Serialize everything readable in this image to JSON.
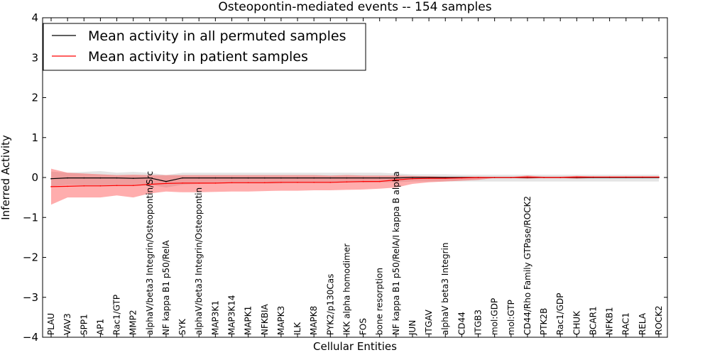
{
  "chart_data": {
    "type": "line",
    "title": "Osteopontin-mediated events -- 154 samples",
    "xlabel": "Cellular Entities",
    "ylabel": "Inferred Activity",
    "ylim": [
      -4,
      4
    ],
    "yticks": [
      4,
      3,
      2,
      1,
      0,
      -1,
      -2,
      -3,
      -4
    ],
    "ytick_labels": [
      "4",
      "3",
      "2",
      "1",
      "0",
      "−1",
      "−2",
      "−3",
      "−4"
    ],
    "legend_position": "top-left",
    "categories": [
      "PLAU",
      "VAV3",
      "SPP1",
      "AP1",
      "Rac1/GTP",
      "MMP2",
      "alphaV/beta3 Integrin/Osteopontin/Src",
      "NF kappa B1 p50/RelA",
      "SYK",
      "alphaV/beta3 Integrin/Osteopontin",
      "MAP3K1",
      "MAP3K14",
      "MAPK1",
      "NFKBIA",
      "MAPK3",
      "ILK",
      "MAPK8",
      "PYK2/p130Cas",
      "IKK alpha homodimer",
      "FOS",
      "bone resorption",
      "NF kappa B1 p50/RelA/I kappa B alpha",
      "JUN",
      "ITGAV",
      "alphaV beta3 Integrin",
      "CD44",
      "ITGB3",
      "mol:GDP",
      "mol:GTP",
      "CD44/Rho Family GTPase/ROCK2",
      "PTK2B",
      "Rac1/GDP",
      "CHUK",
      "BCAR1",
      "NFKB1",
      "RAC1",
      "RELA",
      "ROCK2"
    ],
    "series": [
      {
        "name": "Mean activity in all permuted samples",
        "color": "#000000",
        "values": [
          -0.03,
          -0.01,
          -0.01,
          -0.01,
          -0.01,
          -0.02,
          -0.01,
          -0.1,
          -0.01,
          -0.01,
          -0.01,
          -0.01,
          -0.01,
          -0.01,
          -0.01,
          -0.01,
          -0.01,
          -0.01,
          -0.01,
          -0.01,
          -0.01,
          -0.01,
          0.0,
          0.0,
          0.0,
          0.0,
          0.0,
          0.0,
          0.0,
          0.0,
          0.0,
          0.0,
          0.0,
          0.0,
          0.0,
          0.0,
          0.0,
          0.0
        ],
        "band_upper": [
          0.15,
          0.12,
          0.14,
          0.16,
          0.12,
          0.14,
          0.12,
          0.06,
          0.12,
          0.12,
          0.12,
          0.12,
          0.12,
          0.12,
          0.12,
          0.12,
          0.12,
          0.12,
          0.12,
          0.12,
          0.12,
          0.1,
          0.08,
          0.08,
          0.08,
          0.07,
          0.07,
          0.07,
          0.07,
          0.07,
          0.07,
          0.07,
          0.07,
          0.07,
          0.07,
          0.07,
          0.07,
          0.07
        ],
        "band_lower": [
          -0.22,
          -0.18,
          -0.2,
          -0.2,
          -0.2,
          -0.2,
          -0.18,
          -0.25,
          -0.18,
          -0.16,
          -0.15,
          -0.15,
          -0.15,
          -0.15,
          -0.15,
          -0.14,
          -0.14,
          -0.14,
          -0.13,
          -0.13,
          -0.12,
          -0.12,
          -0.1,
          -0.1,
          -0.1,
          -0.1,
          -0.1,
          -0.1,
          -0.1,
          -0.1,
          -0.1,
          -0.1,
          -0.1,
          -0.1,
          -0.1,
          -0.1,
          -0.1,
          -0.1
        ]
      },
      {
        "name": "Mean activity in patient samples",
        "color": "#ff0000",
        "values": [
          -0.23,
          -0.22,
          -0.21,
          -0.21,
          -0.2,
          -0.2,
          -0.17,
          -0.15,
          -0.14,
          -0.14,
          -0.14,
          -0.13,
          -0.13,
          -0.13,
          -0.12,
          -0.12,
          -0.12,
          -0.12,
          -0.11,
          -0.1,
          -0.1,
          -0.06,
          -0.03,
          -0.02,
          -0.02,
          -0.01,
          0.0,
          0.0,
          0.0,
          0.01,
          0.0,
          0.0,
          0.01,
          0.01,
          0.01,
          0.01,
          0.01,
          0.01
        ],
        "band_upper": [
          0.22,
          0.12,
          0.1,
          0.08,
          0.06,
          0.07,
          0.06,
          0.06,
          0.06,
          0.06,
          0.06,
          0.06,
          0.06,
          0.06,
          0.06,
          0.06,
          0.06,
          0.05,
          0.06,
          0.05,
          0.05,
          0.05,
          0.04,
          0.03,
          0.02,
          0.02,
          0.02,
          0.01,
          0.01,
          0.05,
          0.02,
          0.02,
          0.04,
          0.02,
          0.02,
          0.02,
          0.02,
          0.02
        ],
        "band_lower": [
          -0.68,
          -0.5,
          -0.5,
          -0.5,
          -0.45,
          -0.5,
          -0.4,
          -0.35,
          -0.37,
          -0.37,
          -0.36,
          -0.35,
          -0.35,
          -0.34,
          -0.33,
          -0.33,
          -0.32,
          -0.32,
          -0.31,
          -0.3,
          -0.28,
          -0.25,
          -0.16,
          -0.12,
          -0.1,
          -0.08,
          -0.06,
          -0.01,
          -0.01,
          -0.03,
          -0.01,
          -0.01,
          -0.03,
          -0.01,
          -0.01,
          -0.01,
          -0.01,
          -0.01
        ]
      }
    ]
  }
}
